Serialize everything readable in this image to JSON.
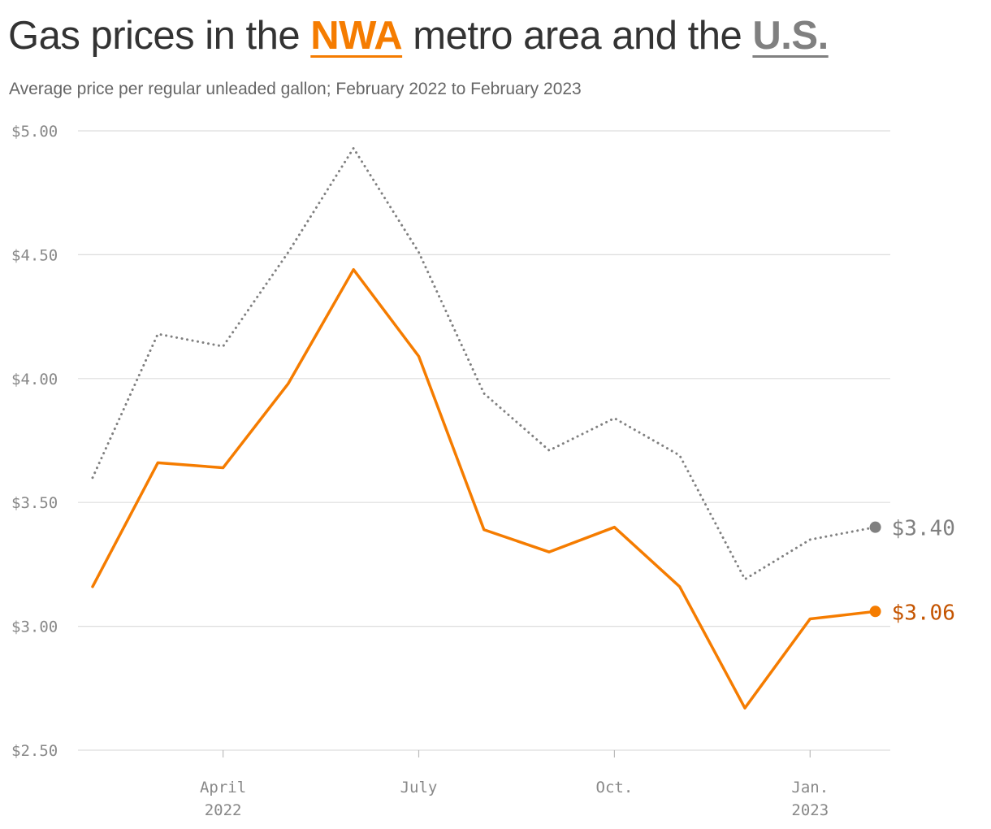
{
  "header": {
    "title_prefix": "Gas prices in the",
    "title_series1": "NWA",
    "title_middle": "metro area and the",
    "title_series2": "U.S.",
    "subtitle": "Average price per regular unleaded gallon; February 2022 to February 2023"
  },
  "colors": {
    "nwa": "#f57c00",
    "us": "#808080",
    "nwa_label": "#c45400",
    "grid": "#dddddd",
    "axis_text": "#888888"
  },
  "chart_data": {
    "type": "line",
    "x": [
      "2022-02",
      "2022-03",
      "2022-04",
      "2022-05",
      "2022-06",
      "2022-07",
      "2022-08",
      "2022-09",
      "2022-10",
      "2022-11",
      "2022-12",
      "2023-01",
      "2023-02"
    ],
    "series": [
      {
        "name": "NWA",
        "style": "solid",
        "color": "#f57c00",
        "values": [
          3.16,
          3.66,
          3.64,
          3.98,
          4.44,
          4.09,
          3.39,
          3.3,
          3.4,
          3.16,
          2.67,
          3.03,
          3.06
        ]
      },
      {
        "name": "U.S.",
        "style": "dotted",
        "color": "#808080",
        "values": [
          3.6,
          4.18,
          4.13,
          4.51,
          4.93,
          4.51,
          3.94,
          3.71,
          3.84,
          3.69,
          3.19,
          3.35,
          3.4
        ]
      }
    ],
    "ylim": [
      2.5,
      5.0
    ],
    "y_ticks": [
      {
        "value": 5.0,
        "label": "$5.00"
      },
      {
        "value": 4.5,
        "label": "$4.50"
      },
      {
        "value": 4.0,
        "label": "$4.00"
      },
      {
        "value": 3.5,
        "label": "$3.50"
      },
      {
        "value": 3.0,
        "label": "$3.00"
      },
      {
        "value": 2.5,
        "label": "$2.50"
      }
    ],
    "x_ticks": [
      {
        "index": 2,
        "line1": "April",
        "line2": "2022"
      },
      {
        "index": 5,
        "line1": "July",
        "line2": ""
      },
      {
        "index": 8,
        "line1": "Oct.",
        "line2": ""
      },
      {
        "index": 11,
        "line1": "Jan.",
        "line2": "2023"
      }
    ],
    "end_labels": {
      "NWA": "$3.06",
      "U.S.": "$3.40"
    },
    "grid": true,
    "xlabel": "",
    "ylabel": ""
  }
}
